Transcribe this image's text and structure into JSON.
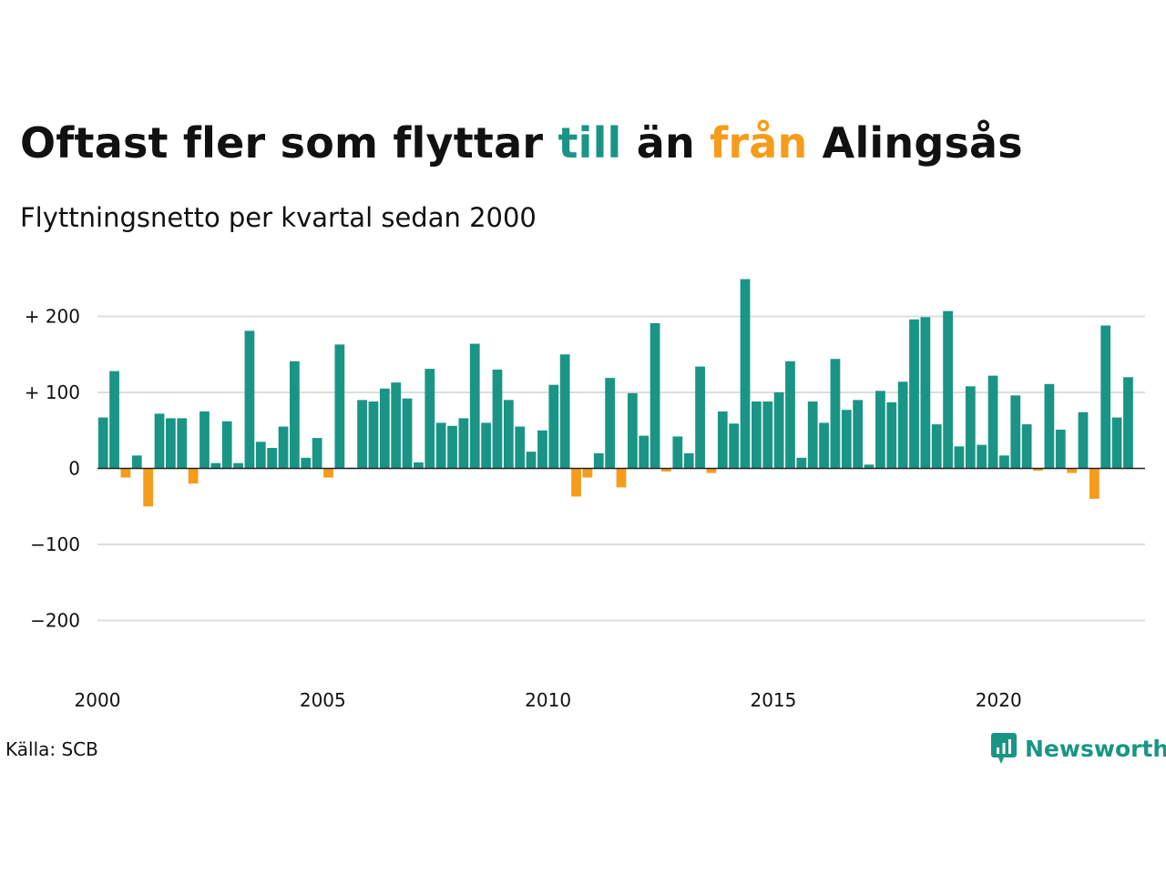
{
  "title": {
    "part1": "Oftast fler som flyttar ",
    "till": "till",
    "part2": " än ",
    "fran": "från",
    "part3": " Alingsås"
  },
  "subtitle": "Flyttningsnetto per kvartal sedan 2000",
  "source": "Källa: SCB",
  "logo": {
    "text": "Newsworthy",
    "icon": "chart-bubble-icon"
  },
  "colors": {
    "positive": "#1a9585",
    "negative": "#f59d1b",
    "grid": "#dddddd",
    "axis": "#222222"
  },
  "chart_data": {
    "type": "bar",
    "title": "Oftast fler som flyttar till än från Alingsås",
    "subtitle": "Flyttningsnetto per kvartal sedan 2000",
    "start_year": 2000,
    "ylim": [
      -250,
      250
    ],
    "yticks": [
      200,
      100,
      0,
      -100,
      -200
    ],
    "ytick_labels": [
      "+ 200",
      "+ 100",
      "0",
      "−100",
      "−200"
    ],
    "xtick_labels": [
      "2000",
      "2005",
      "2010",
      "2015",
      "2020"
    ],
    "grid": true,
    "categories": [
      "2000 K1",
      "2000 K2",
      "2000 K3",
      "2000 K4",
      "2001 K1",
      "2001 K2",
      "2001 K3",
      "2001 K4",
      "2002 K1",
      "2002 K2",
      "2002 K3",
      "2002 K4",
      "2003 K1",
      "2003 K2",
      "2003 K3",
      "2003 K4",
      "2004 K1",
      "2004 K2",
      "2004 K3",
      "2004 K4",
      "2005 K1",
      "2005 K2",
      "2005 K3",
      "2005 K4",
      "2006 K1",
      "2006 K2",
      "2006 K3",
      "2006 K4",
      "2007 K1",
      "2007 K2",
      "2007 K3",
      "2007 K4",
      "2008 K1",
      "2008 K2",
      "2008 K3",
      "2008 K4",
      "2009 K1",
      "2009 K2",
      "2009 K3",
      "2009 K4",
      "2010 K1",
      "2010 K2",
      "2010 K3",
      "2010 K4",
      "2011 K1",
      "2011 K2",
      "2011 K3",
      "2011 K4",
      "2012 K1",
      "2012 K2",
      "2012 K3",
      "2012 K4",
      "2013 K1",
      "2013 K2",
      "2013 K3",
      "2013 K4",
      "2014 K1",
      "2014 K2",
      "2014 K3",
      "2014 K4",
      "2015 K1",
      "2015 K2",
      "2015 K3",
      "2015 K4",
      "2016 K1",
      "2016 K2",
      "2016 K3",
      "2016 K4",
      "2017 K1",
      "2017 K2",
      "2017 K3",
      "2017 K4",
      "2018 K1",
      "2018 K2",
      "2018 K3",
      "2018 K4",
      "2019 K1",
      "2019 K2",
      "2019 K3",
      "2019 K4",
      "2020 K1",
      "2020 K2",
      "2020 K3",
      "2020 K4",
      "2021 K1",
      "2021 K2",
      "2021 K3",
      "2021 K4",
      "2022 K1",
      "2022 K2",
      "2022 K3",
      "2022 K4",
      "2023 K1"
    ],
    "values": [
      67,
      128,
      -12,
      17,
      -50,
      72,
      66,
      66,
      -20,
      75,
      7,
      62,
      7,
      181,
      35,
      27,
      55,
      141,
      14,
      40,
      -12,
      163,
      1,
      90,
      88,
      105,
      113,
      92,
      8,
      131,
      60,
      56,
      66,
      164,
      60,
      130,
      90,
      55,
      22,
      50,
      110,
      150,
      -37,
      -12,
      20,
      119,
      -25,
      99,
      43,
      191,
      -4,
      42,
      20,
      134,
      -6,
      75,
      59,
      249,
      88,
      88,
      100,
      141,
      14,
      88,
      60,
      144,
      77,
      90,
      5,
      102,
      87,
      114,
      196,
      199,
      58,
      207,
      29,
      108,
      31,
      122,
      17,
      96,
      58,
      -3,
      111,
      51,
      -6,
      74,
      -40,
      188,
      67,
      120,
      0
    ]
  }
}
